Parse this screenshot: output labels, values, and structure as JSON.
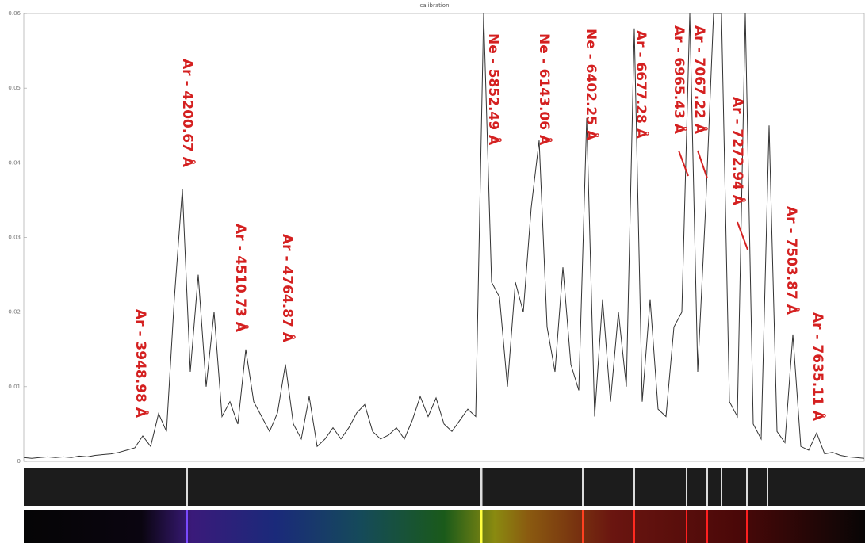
{
  "chart_data": {
    "type": "line",
    "title": "calibration",
    "series": [
      {
        "color": "#333333",
        "values": [
          0.0005,
          0.0004,
          0.0005,
          0.0006,
          0.0005,
          0.0006,
          0.0005,
          0.0007,
          0.0006,
          0.0008,
          0.0009,
          0.001,
          0.0012,
          0.0015,
          0.0018,
          0.0034,
          0.002,
          0.0064,
          0.004,
          0.022,
          0.0365,
          0.012,
          0.025,
          0.01,
          0.02,
          0.006,
          0.008,
          0.005,
          0.015,
          0.008,
          0.006,
          0.004,
          0.0065,
          0.013,
          0.005,
          0.003,
          0.0087,
          0.002,
          0.003,
          0.0045,
          0.003,
          0.0045,
          0.0065,
          0.0076,
          0.004,
          0.003,
          0.0035,
          0.0045,
          0.003,
          0.0055,
          0.0087,
          0.006,
          0.0085,
          0.005,
          0.004,
          0.0055,
          0.007,
          0.006,
          0.06,
          0.024,
          0.022,
          0.01,
          0.024,
          0.02,
          0.034,
          0.043,
          0.018,
          0.012,
          0.026,
          0.013,
          0.0095,
          0.046,
          0.006,
          0.0217,
          0.008,
          0.02,
          0.01,
          0.058,
          0.008,
          0.0217,
          0.007,
          0.006,
          0.018,
          0.02,
          0.06,
          0.012,
          0.034,
          0.06,
          0.06,
          0.008,
          0.006,
          0.06,
          0.005,
          0.003,
          0.045,
          0.004,
          0.0025,
          0.017,
          0.002,
          0.0015,
          0.0038,
          0.001,
          0.0012,
          0.0008,
          0.0006,
          0.0005,
          0.0004
        ]
      }
    ],
    "ylim": [
      0,
      0.06
    ],
    "yticks": [
      0,
      0.01,
      0.02,
      0.03,
      0.04,
      0.05,
      0.06
    ],
    "annotations": [
      "Ar - 3948.98 Å",
      "Ar - 4200.67 Å",
      "Ar - 4510.73 Å",
      "Ar - 4764.87 Å",
      "Ne - 5852.49 Å",
      "Ne - 6143.06 Å",
      "Ne - 6402.25 Å",
      "Ar - 6677.28 Å",
      "Ar - 6965.43 Å",
      "Ar - 7067.22 Å",
      "Ar - 7272.94 Å",
      "Ar - 7503.87 Å",
      "Ar - 7635.11 Å"
    ],
    "annotation_color": "#d42020"
  }
}
